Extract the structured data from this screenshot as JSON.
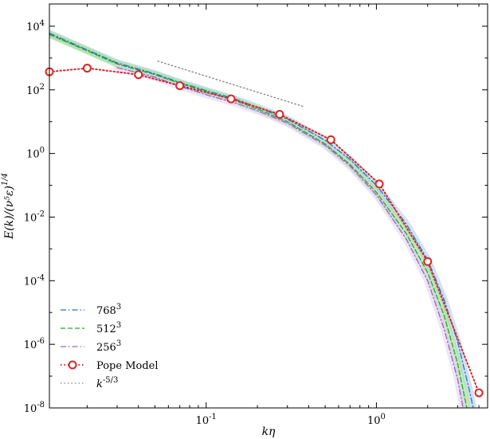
{
  "chart_data": {
    "type": "line",
    "title": "",
    "xlabel": "kη",
    "ylabel": "E(k)/(ν⁵ε)^{1/4}",
    "xscale": "log",
    "yscale": "log",
    "xlim": [
      0.012,
      4.5
    ],
    "ylim": [
      1e-08,
      50000
    ],
    "grid": false,
    "legend_position": "lower-left",
    "x_tick_labels": [
      "10^{-1}",
      "10^{0}"
    ],
    "y_tick_labels": [
      "10^{-8}",
      "10^{-6}",
      "10^{-4}",
      "10^{-2}",
      "10^{0}",
      "10^{2}",
      "10^{4}"
    ],
    "series": [
      {
        "name": "768³",
        "color": "#1f77b4",
        "dash": "dashdot",
        "band_color": "#aec7e8",
        "x": [
          0.012,
          0.02,
          0.03,
          0.05,
          0.07,
          0.1,
          0.15,
          0.2,
          0.3,
          0.5,
          0.7,
          1.0,
          1.5,
          2.0,
          2.5,
          3.0,
          3.5,
          4.0
        ],
        "y": [
          6000,
          1800,
          700,
          320,
          170,
          95,
          50,
          28,
          12,
          2.6,
          0.65,
          0.1,
          0.006,
          0.00045,
          2.5e-05,
          1.2e-06,
          4e-08,
          1.5e-09
        ]
      },
      {
        "name": "512³",
        "color": "#2ca02c",
        "dash": "dashed",
        "band_color": "#98df8a",
        "x": [
          0.012,
          0.02,
          0.03,
          0.05,
          0.07,
          0.1,
          0.15,
          0.2,
          0.3,
          0.5,
          0.7,
          1.0,
          1.5,
          2.0,
          2.5,
          3.0,
          3.4
        ],
        "y": [
          5500,
          1700,
          650,
          300,
          160,
          88,
          45,
          25,
          10,
          2.0,
          0.45,
          0.06,
          0.003,
          0.00018,
          8e-06,
          2.5e-07,
          1e-08
        ]
      },
      {
        "name": "256³",
        "color": "#9467bd",
        "dash": "dashdot",
        "band_color": "#e0cdf2",
        "x": [
          0.03,
          0.05,
          0.07,
          0.1,
          0.15,
          0.2,
          0.3,
          0.5,
          0.7,
          1.0,
          1.5,
          2.0,
          2.5,
          3.0,
          3.5
        ],
        "y": [
          500,
          250,
          130,
          70,
          38,
          22,
          9,
          1.8,
          0.4,
          0.05,
          0.002,
          0.0001,
          3e-06,
          8e-08,
          1e-09
        ]
      },
      {
        "name": "Pope Model",
        "color": "#d62728",
        "dash": "dotted",
        "markers": true,
        "x": [
          0.012,
          0.02,
          0.04,
          0.07,
          0.14,
          0.27,
          0.54,
          1.04,
          2.0,
          4.0
        ],
        "y": [
          370,
          480,
          300,
          135,
          52,
          17,
          2.7,
          0.11,
          0.0004,
          3e-08
        ]
      },
      {
        "name": "k^{-5/3}",
        "color": "#808080",
        "dash": "dotted",
        "x": [
          0.052,
          0.38
        ],
        "y": [
          800,
          29
        ]
      }
    ]
  }
}
